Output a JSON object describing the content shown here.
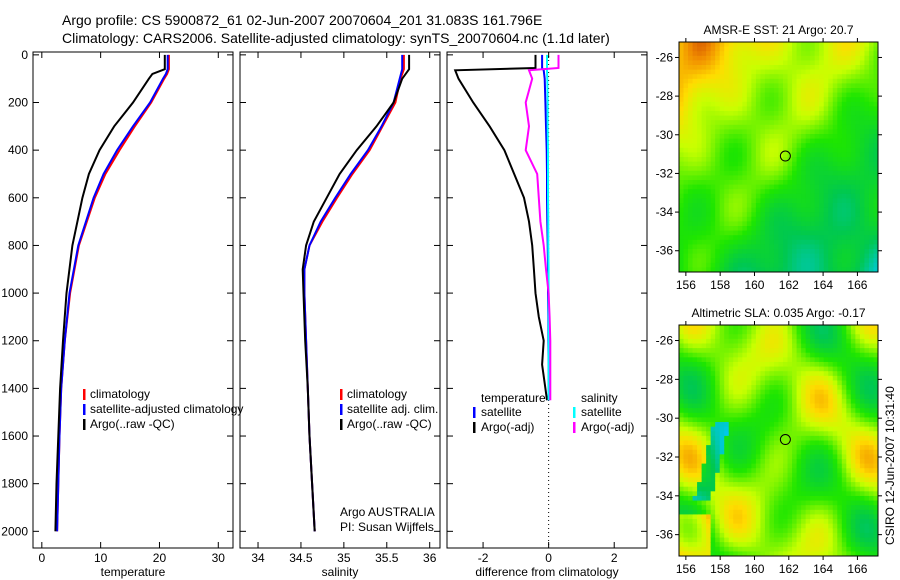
{
  "title_line1": "Argo profile: CS 5900872_61 02-Jun-2007 20070604_201 31.083S 161.796E",
  "title_line2": "Climatology: CARS2006. Satellite-adjusted climatology: synTS_20070604.nc (1.1d later)",
  "footer": "CSIRO 12-Jun-2007 10:31:40",
  "credit": [
    "Argo AUSTRALIA",
    "PI: Susan Wijffels"
  ],
  "colors": {
    "climatology": "#ff0000",
    "satellite": "#0000ff",
    "argo": "#000000",
    "sal_satellite": "#00ffff",
    "sal_argo": "#ff00ff"
  },
  "chart_data": [
    {
      "type": "line",
      "xlabel": "temperature",
      "ylabel": "",
      "xlim": [
        -1.5,
        32.5
      ],
      "ylim": [
        2070,
        -12
      ],
      "xticks": [
        0,
        10,
        20,
        30
      ],
      "yticks": [
        0,
        200,
        400,
        600,
        800,
        1000,
        1200,
        1400,
        1600,
        1800,
        2000
      ],
      "legend": [
        "climatology",
        "satellite-adjusted climatology",
        "Argo(..raw -QC)"
      ],
      "depth": [
        0,
        60,
        80,
        100,
        200,
        300,
        400,
        500,
        600,
        800,
        1000,
        1200,
        1400,
        1600,
        1800,
        2000
      ],
      "series": [
        {
          "name": "climatology",
          "color": "#ff0000",
          "values": [
            21.6,
            21.6,
            21.3,
            20.8,
            18.6,
            15.8,
            13.2,
            10.8,
            9.0,
            6.3,
            4.8,
            3.9,
            3.3,
            3.0,
            2.8,
            2.6
          ]
        },
        {
          "name": "satellite-adjusted climatology",
          "color": "#0000ff",
          "values": [
            21.4,
            21.4,
            21.1,
            20.6,
            18.4,
            15.5,
            12.8,
            10.5,
            8.8,
            6.2,
            4.7,
            3.9,
            3.3,
            3.0,
            2.8,
            2.6
          ]
        },
        {
          "name": "Argo(..raw -QC)",
          "color": "#000000",
          "values": [
            20.9,
            20.9,
            18.8,
            18.2,
            15.5,
            12.3,
            9.8,
            8.0,
            6.9,
            5.2,
            4.2,
            3.6,
            3.1,
            2.8,
            2.5,
            2.3
          ]
        }
      ]
    },
    {
      "type": "line",
      "xlabel": "salinity",
      "xlim": [
        33.79,
        36.12
      ],
      "ylim": [
        2070,
        -12
      ],
      "xticks": [
        34,
        34.5,
        35,
        35.5,
        36
      ],
      "legend": [
        "climatology",
        "satellite adj. clim.",
        "Argo(..raw -QC)"
      ],
      "depth": [
        0,
        60,
        100,
        200,
        300,
        400,
        500,
        600,
        700,
        800,
        900,
        1000,
        1200,
        1400,
        1600,
        1800,
        2000
      ],
      "series": [
        {
          "name": "climatology",
          "color": "#ff0000",
          "values": [
            35.7,
            35.7,
            35.66,
            35.6,
            35.45,
            35.3,
            35.1,
            34.92,
            34.75,
            34.6,
            34.54,
            34.54,
            34.56,
            34.58,
            34.6,
            34.63,
            34.66
          ]
        },
        {
          "name": "satellite adj. clim.",
          "color": "#0000ff",
          "values": [
            35.68,
            35.68,
            35.65,
            35.58,
            35.44,
            35.28,
            35.08,
            34.9,
            34.73,
            34.6,
            34.54,
            34.54,
            34.56,
            34.58,
            34.6,
            34.63,
            34.66
          ]
        },
        {
          "name": "Argo(..raw -QC)",
          "color": "#000000",
          "values": [
            35.76,
            35.76,
            35.68,
            35.58,
            35.38,
            35.15,
            34.95,
            34.8,
            34.65,
            34.56,
            34.52,
            34.53,
            34.55,
            34.58,
            34.6,
            34.63,
            34.66
          ]
        }
      ]
    },
    {
      "type": "line",
      "xlabel": "difference from climatology",
      "xlim": [
        -3.1,
        3.0
      ],
      "ylim": [
        2070,
        -12
      ],
      "xticks": [
        -2,
        0,
        2
      ],
      "legend_groups": [
        {
          "title": "temperature",
          "items": [
            "satellite",
            "Argo(-adj)"
          ]
        },
        {
          "title": "salinity",
          "items": [
            "satellite",
            "Argo(-adj)"
          ]
        }
      ],
      "depth": [
        0,
        55,
        65,
        100,
        200,
        300,
        400,
        500,
        600,
        700,
        800,
        900,
        1000,
        1100,
        1200,
        1300,
        1400,
        1450
      ],
      "series": [
        {
          "name": "temperature satellite",
          "color": "#0000ff",
          "values": [
            -0.2,
            -0.2,
            -0.15,
            -0.12,
            -0.1,
            -0.08,
            -0.06,
            -0.05,
            -0.05,
            -0.04,
            -0.03,
            -0.02,
            -0.02,
            -0.01,
            -0.01,
            0,
            0,
            0
          ]
        },
        {
          "name": "temperature Argo(-adj)",
          "color": "#000000",
          "values": [
            -0.4,
            -0.4,
            -2.85,
            -2.75,
            -2.3,
            -1.8,
            -1.35,
            -1.05,
            -0.75,
            -0.6,
            -0.5,
            -0.45,
            -0.4,
            -0.3,
            -0.15,
            -0.2,
            -0.1,
            -0.05
          ]
        },
        {
          "name": "salinity satellite",
          "color": "#00ffff",
          "values": [
            -0.05,
            -0.05,
            -0.05,
            -0.04,
            -0.03,
            -0.03,
            -0.02,
            -0.02,
            -0.02,
            -0.01,
            -0.01,
            0,
            0,
            0,
            0,
            0,
            0,
            0
          ]
        },
        {
          "name": "salinity Argo(-adj)",
          "color": "#ff00ff",
          "values": [
            0.3,
            0.3,
            -0.6,
            -0.5,
            -0.7,
            -0.6,
            -0.7,
            -0.35,
            -0.3,
            -0.25,
            -0.15,
            -0.08,
            0,
            0.03,
            0.05,
            0.05,
            0.05,
            0.05
          ]
        }
      ]
    },
    {
      "type": "heatmap",
      "title": "AMSR-E SST: 21 Argo: 20.7",
      "xlim": [
        155.6,
        167.2
      ],
      "ylim": [
        -37.1,
        -25.2
      ],
      "xticks": [
        156,
        158,
        160,
        162,
        164,
        166
      ],
      "yticks": [
        -26,
        -28,
        -30,
        -32,
        -34,
        -36
      ],
      "marker": [
        161.8,
        -31.1
      ]
    },
    {
      "type": "heatmap",
      "title": "Altimetric SLA: 0.035 Argo: -0.17",
      "xlim": [
        155.6,
        167.2
      ],
      "ylim": [
        -37.1,
        -25.2
      ],
      "xticks": [
        156,
        158,
        160,
        162,
        164,
        166
      ],
      "yticks": [
        -26,
        -28,
        -30,
        -32,
        -34,
        -36
      ],
      "marker": [
        161.8,
        -31.1
      ]
    }
  ]
}
